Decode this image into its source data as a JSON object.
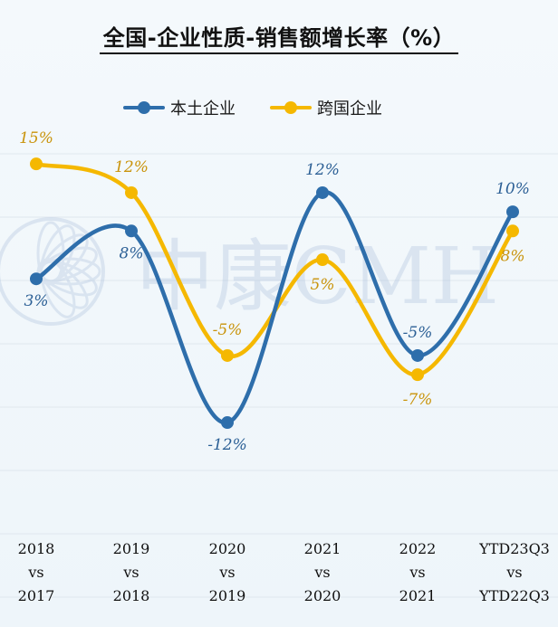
{
  "title": "全国-企业性质-销售额增长率（%）",
  "watermark_text": "中康CMH",
  "colors": {
    "series_1": "#2e6eab",
    "series_2": "#f5b800",
    "label_1": "#2b5f95",
    "label_2": "#c9930a",
    "gridline": "#dfe7ee"
  },
  "chart_data": {
    "type": "line",
    "title": "全国-企业性质-销售额增长率（%）",
    "categories": [
      [
        "2018",
        "vs",
        "2017"
      ],
      [
        "2019",
        "vs",
        "2018"
      ],
      [
        "2020",
        "vs",
        "2019"
      ],
      [
        "2021",
        "vs",
        "2020"
      ],
      [
        "2022",
        "vs",
        "2021"
      ],
      [
        "YTD23Q3",
        "vs",
        "YTD22Q3"
      ]
    ],
    "series": [
      {
        "name": "本土企业",
        "values": [
          3,
          8,
          -12,
          12,
          -5,
          10
        ],
        "labels": [
          "3%",
          "8%",
          "-12%",
          "12%",
          "-5%",
          "10%"
        ]
      },
      {
        "name": "跨国企业",
        "values": [
          15,
          12,
          -5,
          5,
          -7,
          8
        ],
        "labels": [
          "15%",
          "12%",
          "-5%",
          "5%",
          "-7%",
          "8%"
        ]
      }
    ],
    "ylim": [
      -17,
      17
    ],
    "legend_position": "top-center",
    "line_style": "smooth",
    "grid": true
  }
}
